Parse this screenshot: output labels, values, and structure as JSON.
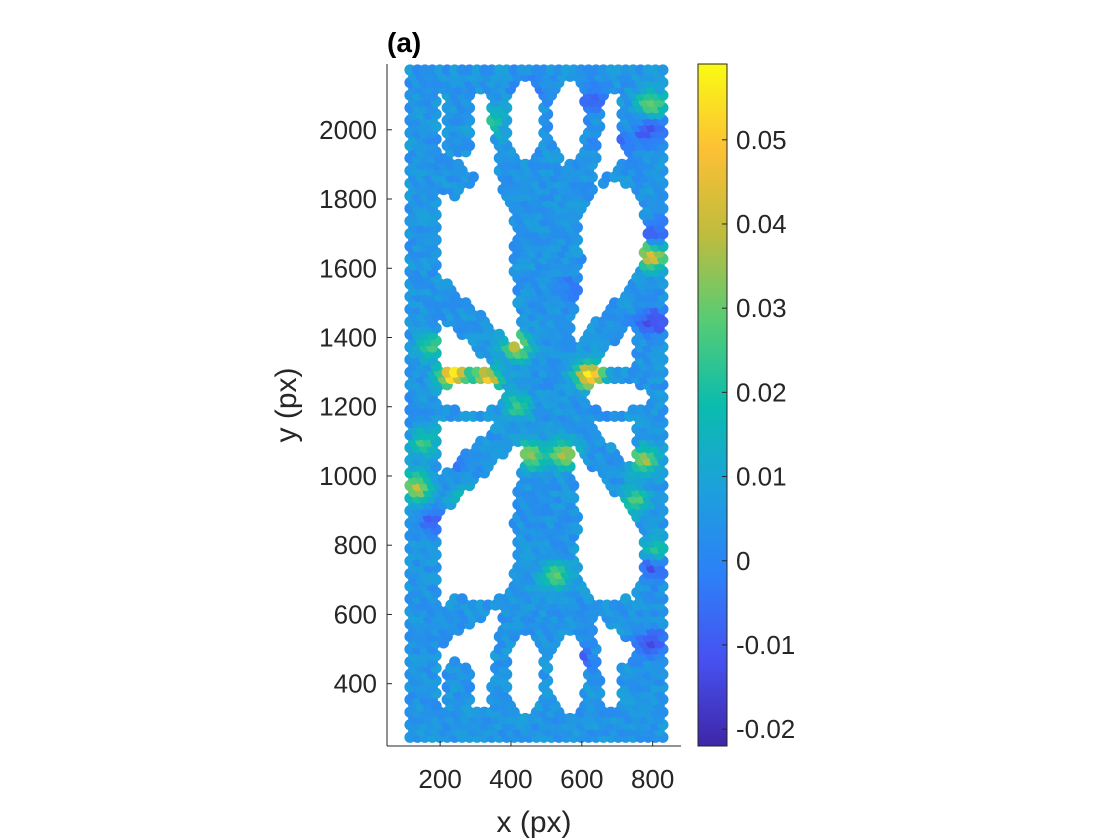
{
  "chart_data": {
    "type": "scatter",
    "title": "(a)",
    "xlabel": "x (px)",
    "ylabel": "y (px)",
    "xlim": [
      50,
      880
    ],
    "ylim": [
      220,
      2190
    ],
    "xticks": [
      200,
      400,
      600,
      800
    ],
    "yticks": [
      400,
      600,
      800,
      1000,
      1200,
      1400,
      1600,
      1800,
      2000
    ],
    "colorbar": {
      "colormap": "parula",
      "range": [
        -0.022,
        0.059
      ],
      "ticks": [
        -0.02,
        -0.01,
        0,
        0.01,
        0.02,
        0.03,
        0.04,
        0.05
      ],
      "tick_labels": [
        "-0.02",
        "-0.01",
        "0",
        "0.01",
        "0.02",
        "0.03",
        "0.04",
        "0.05"
      ]
    },
    "structure": {
      "description_units": "data (px)",
      "frame": {
        "x_range": [
          115,
          830
        ],
        "y_range": [
          245,
          2175
        ],
        "band": 75
      },
      "bars": [
        {
          "from": [
            115,
            1230
          ],
          "to": [
            830,
            1230
          ],
          "width": 140
        },
        {
          "from": [
            500,
            245
          ],
          "to": [
            500,
            2175
          ],
          "width": 85
        },
        {
          "from": [
            500,
            1230
          ],
          "to": [
            370,
            2175
          ],
          "width": 90
        },
        {
          "from": [
            500,
            1230
          ],
          "to": [
            630,
            2175
          ],
          "width": 90
        },
        {
          "from": [
            500,
            1230
          ],
          "to": [
            370,
            245
          ],
          "width": 90
        },
        {
          "from": [
            500,
            1230
          ],
          "to": [
            630,
            245
          ],
          "width": 90
        },
        {
          "from": [
            115,
            1950
          ],
          "to": [
            500,
            1650
          ],
          "width": 90
        },
        {
          "from": [
            830,
            1950
          ],
          "to": [
            500,
            1650
          ],
          "width": 90
        },
        {
          "from": [
            115,
            500
          ],
          "to": [
            500,
            780
          ],
          "width": 90
        },
        {
          "from": [
            830,
            500
          ],
          "to": [
            500,
            780
          ],
          "width": 90
        },
        {
          "from": [
            115,
            1600
          ],
          "to": [
            500,
            1230
          ],
          "width": 80
        },
        {
          "from": [
            830,
            1600
          ],
          "to": [
            500,
            1230
          ],
          "width": 80
        },
        {
          "from": [
            115,
            860
          ],
          "to": [
            500,
            1230
          ],
          "width": 80
        },
        {
          "from": [
            830,
            860
          ],
          "to": [
            500,
            1230
          ],
          "width": 80
        },
        {
          "from": [
            250,
            2175
          ],
          "to": [
            250,
            1960
          ],
          "width": 70
        },
        {
          "from": [
            740,
            2175
          ],
          "to": [
            740,
            1960
          ],
          "width": 70
        },
        {
          "from": [
            250,
            245
          ],
          "to": [
            250,
            430
          ],
          "width": 70
        },
        {
          "from": [
            740,
            245
          ],
          "to": [
            740,
            430
          ],
          "width": 70
        }
      ],
      "voids": [
        {
          "cx": 290,
          "cy": 1230,
          "rx": 95,
          "ry": 45
        },
        {
          "cx": 700,
          "cy": 1230,
          "rx": 90,
          "ry": 45
        },
        {
          "cx": 315,
          "cy": 1700,
          "rx": 95,
          "ry": 150
        },
        {
          "cx": 685,
          "cy": 1700,
          "rx": 95,
          "ry": 150
        },
        {
          "cx": 320,
          "cy": 780,
          "rx": 95,
          "ry": 150
        },
        {
          "cx": 680,
          "cy": 780,
          "rx": 95,
          "ry": 150
        },
        {
          "cx": 440,
          "cy": 2030,
          "rx": 50,
          "ry": 120
        },
        {
          "cx": 560,
          "cy": 2030,
          "rx": 50,
          "ry": 120
        },
        {
          "cx": 440,
          "cy": 430,
          "rx": 50,
          "ry": 120
        },
        {
          "cx": 560,
          "cy": 430,
          "rx": 50,
          "ry": 120
        }
      ],
      "marker_spacing": 21,
      "base_strain": 0.005
    },
    "hotspots": [
      {
        "x": 235,
        "y": 1295,
        "value": 0.056
      },
      {
        "x": 625,
        "y": 1295,
        "value": 0.055
      },
      {
        "x": 335,
        "y": 1280,
        "value": 0.047
      },
      {
        "x": 420,
        "y": 1380,
        "value": 0.04
      },
      {
        "x": 550,
        "y": 1070,
        "value": 0.038
      },
      {
        "x": 455,
        "y": 1065,
        "value": 0.035
      },
      {
        "x": 135,
        "y": 970,
        "value": 0.04
      },
      {
        "x": 280,
        "y": 920,
        "value": 0.036
      },
      {
        "x": 800,
        "y": 1640,
        "value": 0.045
      },
      {
        "x": 795,
        "y": 2080,
        "value": 0.03
      },
      {
        "x": 780,
        "y": 1050,
        "value": 0.036
      },
      {
        "x": 530,
        "y": 720,
        "value": 0.03
      },
      {
        "x": 420,
        "y": 1210,
        "value": 0.025
      },
      {
        "x": 750,
        "y": 930,
        "value": 0.028
      },
      {
        "x": 810,
        "y": 790,
        "value": 0.024
      },
      {
        "x": 180,
        "y": 1380,
        "value": 0.027
      },
      {
        "x": 160,
        "y": 1100,
        "value": 0.025
      },
      {
        "x": 340,
        "y": 2030,
        "value": 0.024
      },
      {
        "x": 790,
        "y": 2000,
        "value": -0.012
      },
      {
        "x": 800,
        "y": 1450,
        "value": -0.015
      },
      {
        "x": 800,
        "y": 740,
        "value": -0.013
      },
      {
        "x": 800,
        "y": 520,
        "value": -0.015
      },
      {
        "x": 810,
        "y": 1700,
        "value": -0.012
      },
      {
        "x": 180,
        "y": 880,
        "value": -0.008
      },
      {
        "x": 235,
        "y": 1060,
        "value": -0.01
      },
      {
        "x": 640,
        "y": 2090,
        "value": -0.01
      },
      {
        "x": 690,
        "y": 1960,
        "value": -0.013
      },
      {
        "x": 455,
        "y": 2115,
        "value": -0.008
      },
      {
        "x": 350,
        "y": 1780,
        "value": -0.006
      },
      {
        "x": 580,
        "y": 1540,
        "value": -0.007
      },
      {
        "x": 595,
        "y": 470,
        "value": -0.009
      },
      {
        "x": 280,
        "y": 830,
        "value": -0.008
      }
    ]
  }
}
